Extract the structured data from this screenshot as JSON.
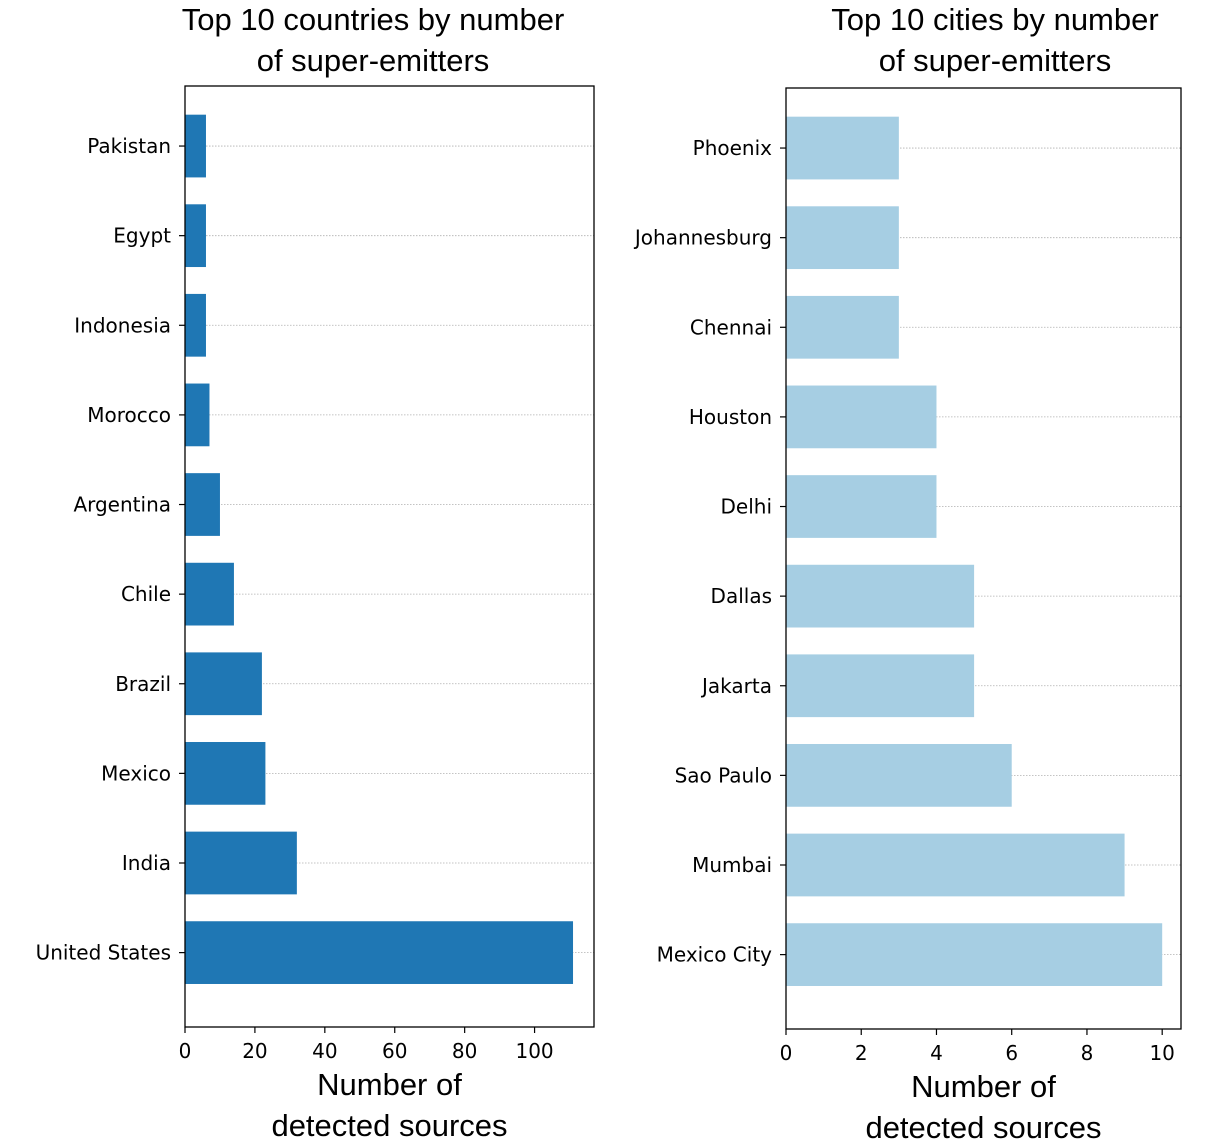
{
  "chart_data": [
    {
      "type": "bar",
      "orientation": "horizontal",
      "title": [
        "Top 10 countries by number",
        "of super-emitters"
      ],
      "xlabel": [
        "Number of",
        "detected sources"
      ],
      "ylabel": "",
      "xlim": [
        0,
        117
      ],
      "xticks": [
        0,
        20,
        40,
        60,
        80,
        100
      ],
      "grid": "horizontal dotted",
      "color": "#1f77b4",
      "categories": [
        "United States",
        "India",
        "Mexico",
        "Brazil",
        "Chile",
        "Argentina",
        "Morocco",
        "Indonesia",
        "Egypt",
        "Pakistan"
      ],
      "values": [
        111,
        32,
        23,
        22,
        14,
        10,
        7,
        6,
        6,
        6
      ]
    },
    {
      "type": "bar",
      "orientation": "horizontal",
      "title": [
        "Top 10 cities by number",
        "of super-emitters"
      ],
      "xlabel": [
        "Number of",
        "detected sources"
      ],
      "ylabel": "",
      "xlim": [
        0,
        10.5
      ],
      "xticks": [
        0,
        2,
        4,
        6,
        8,
        10
      ],
      "grid": "horizontal dotted",
      "color": "#a6cee3",
      "categories": [
        "Mexico City",
        "Mumbai",
        "Sao Paulo",
        "Jakarta",
        "Dallas",
        "Delhi",
        "Houston",
        "Chennai",
        "Johannesburg",
        "Phoenix"
      ],
      "values": [
        10,
        9,
        6,
        5,
        5,
        4,
        4,
        3,
        3,
        3
      ]
    }
  ]
}
